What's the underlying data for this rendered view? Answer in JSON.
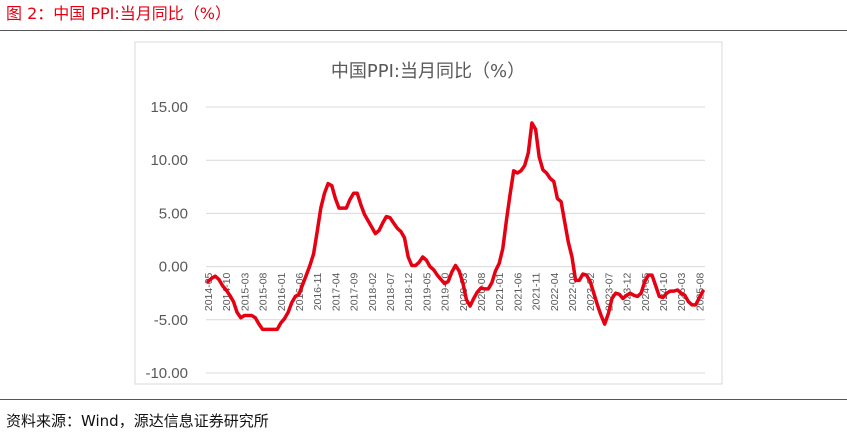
{
  "figure": {
    "title": "图 2：中国 PPI:当月同比（%）",
    "source": "资料来源：Wind，源达信息证券研究所",
    "accent_color": "#e60012"
  },
  "chart_data": {
    "type": "line",
    "title": "中国PPI:当月同比（%）",
    "xlabel": "",
    "ylabel": "",
    "ylim": [
      -10,
      15
    ],
    "yticks": [
      "15.00",
      "10.00",
      "5.00",
      "0.00",
      "-5.00",
      "-10.00"
    ],
    "ytick_values": [
      15,
      10,
      5,
      0,
      -5,
      -10
    ],
    "xtick_labels": [
      "2014-05",
      "2014-10",
      "2015-03",
      "2015-08",
      "2016-01",
      "2016-06",
      "2016-11",
      "2017-04",
      "2017-09",
      "2018-02",
      "2018-07",
      "2018-12",
      "2019-05",
      "2019-10",
      "2020-03",
      "2020-08",
      "2021-01",
      "2021-06",
      "2021-11",
      "2022-04",
      "2022-09",
      "2023-02",
      "2023-07",
      "2023-12",
      "2024-05",
      "2024-10",
      "2025-03",
      "2025-08"
    ],
    "grid": true,
    "line_color": "#e60012",
    "series": [
      {
        "values": [
          [
            "2014-05",
            -1.4
          ],
          [
            "2014-06",
            -1.1
          ],
          [
            "2014-07",
            -0.9
          ],
          [
            "2014-08",
            -1.2
          ],
          [
            "2014-09",
            -1.8
          ],
          [
            "2014-10",
            -2.2
          ],
          [
            "2014-11",
            -2.7
          ],
          [
            "2014-12",
            -3.3
          ],
          [
            "2015-01",
            -4.3
          ],
          [
            "2015-02",
            -4.8
          ],
          [
            "2015-03",
            -4.6
          ],
          [
            "2015-04",
            -4.6
          ],
          [
            "2015-05",
            -4.6
          ],
          [
            "2015-06",
            -4.8
          ],
          [
            "2015-07",
            -5.4
          ],
          [
            "2015-08",
            -5.9
          ],
          [
            "2015-09",
            -5.9
          ],
          [
            "2015-10",
            -5.9
          ],
          [
            "2015-11",
            -5.9
          ],
          [
            "2015-12",
            -5.9
          ],
          [
            "2016-01",
            -5.3
          ],
          [
            "2016-02",
            -4.9
          ],
          [
            "2016-03",
            -4.3
          ],
          [
            "2016-04",
            -3.4
          ],
          [
            "2016-05",
            -2.8
          ],
          [
            "2016-06",
            -2.6
          ],
          [
            "2016-07",
            -1.7
          ],
          [
            "2016-08",
            -0.8
          ],
          [
            "2016-09",
            0.1
          ],
          [
            "2016-10",
            1.2
          ],
          [
            "2016-11",
            3.3
          ],
          [
            "2016-12",
            5.5
          ],
          [
            "2017-01",
            6.9
          ],
          [
            "2017-02",
            7.8
          ],
          [
            "2017-03",
            7.6
          ],
          [
            "2017-04",
            6.4
          ],
          [
            "2017-05",
            5.5
          ],
          [
            "2017-06",
            5.5
          ],
          [
            "2017-07",
            5.5
          ],
          [
            "2017-08",
            6.3
          ],
          [
            "2017-09",
            6.9
          ],
          [
            "2017-10",
            6.9
          ],
          [
            "2017-11",
            5.8
          ],
          [
            "2017-12",
            4.9
          ],
          [
            "2018-01",
            4.3
          ],
          [
            "2018-02",
            3.7
          ],
          [
            "2018-03",
            3.1
          ],
          [
            "2018-04",
            3.4
          ],
          [
            "2018-05",
            4.1
          ],
          [
            "2018-06",
            4.7
          ],
          [
            "2018-07",
            4.6
          ],
          [
            "2018-08",
            4.1
          ],
          [
            "2018-09",
            3.6
          ],
          [
            "2018-10",
            3.3
          ],
          [
            "2018-11",
            2.7
          ],
          [
            "2018-12",
            0.9
          ],
          [
            "2019-01",
            0.1
          ],
          [
            "2019-02",
            0.1
          ],
          [
            "2019-03",
            0.4
          ],
          [
            "2019-04",
            0.9
          ],
          [
            "2019-05",
            0.6
          ],
          [
            "2019-06",
            0.0
          ],
          [
            "2019-07",
            -0.3
          ],
          [
            "2019-08",
            -0.8
          ],
          [
            "2019-09",
            -1.2
          ],
          [
            "2019-10",
            -1.6
          ],
          [
            "2019-11",
            -1.4
          ],
          [
            "2019-12",
            -0.5
          ],
          [
            "2020-01",
            0.1
          ],
          [
            "2020-02",
            -0.4
          ],
          [
            "2020-03",
            -1.5
          ],
          [
            "2020-04",
            -3.1
          ],
          [
            "2020-05",
            -3.7
          ],
          [
            "2020-06",
            -3.0
          ],
          [
            "2020-07",
            -2.4
          ],
          [
            "2020-08",
            -2.0
          ],
          [
            "2020-09",
            -2.1
          ],
          [
            "2020-10",
            -2.1
          ],
          [
            "2020-11",
            -1.5
          ],
          [
            "2020-12",
            -0.4
          ],
          [
            "2021-01",
            0.3
          ],
          [
            "2021-02",
            1.7
          ],
          [
            "2021-03",
            4.4
          ],
          [
            "2021-04",
            6.8
          ],
          [
            "2021-05",
            9.0
          ],
          [
            "2021-06",
            8.8
          ],
          [
            "2021-07",
            9.0
          ],
          [
            "2021-08",
            9.5
          ],
          [
            "2021-09",
            10.7
          ],
          [
            "2021-10",
            13.5
          ],
          [
            "2021-11",
            12.9
          ],
          [
            "2021-12",
            10.3
          ],
          [
            "2022-01",
            9.1
          ],
          [
            "2022-02",
            8.8
          ],
          [
            "2022-03",
            8.3
          ],
          [
            "2022-04",
            8.0
          ],
          [
            "2022-05",
            6.4
          ],
          [
            "2022-06",
            6.1
          ],
          [
            "2022-07",
            4.2
          ],
          [
            "2022-08",
            2.3
          ],
          [
            "2022-09",
            0.9
          ],
          [
            "2022-10",
            -1.3
          ],
          [
            "2022-11",
            -1.3
          ],
          [
            "2022-12",
            -0.7
          ],
          [
            "2023-01",
            -0.8
          ],
          [
            "2023-02",
            -1.4
          ],
          [
            "2023-03",
            -2.5
          ],
          [
            "2023-04",
            -3.6
          ],
          [
            "2023-05",
            -4.6
          ],
          [
            "2023-06",
            -5.4
          ],
          [
            "2023-07",
            -4.4
          ],
          [
            "2023-08",
            -3.0
          ],
          [
            "2023-09",
            -2.5
          ],
          [
            "2023-10",
            -2.6
          ],
          [
            "2023-11",
            -3.0
          ],
          [
            "2023-12",
            -2.7
          ],
          [
            "2024-01",
            -2.5
          ],
          [
            "2024-02",
            -2.7
          ],
          [
            "2024-03",
            -2.8
          ],
          [
            "2024-04",
            -2.5
          ],
          [
            "2024-05",
            -1.4
          ],
          [
            "2024-06",
            -0.8
          ],
          [
            "2024-07",
            -0.8
          ],
          [
            "2024-08",
            -1.8
          ],
          [
            "2024-09",
            -2.8
          ],
          [
            "2024-10",
            -2.9
          ],
          [
            "2024-11",
            -2.5
          ],
          [
            "2024-12",
            -2.3
          ],
          [
            "2025-01",
            -2.3
          ],
          [
            "2025-02",
            -2.2
          ],
          [
            "2025-03",
            -2.5
          ],
          [
            "2025-04",
            -2.7
          ],
          [
            "2025-05",
            -3.3
          ],
          [
            "2025-06",
            -3.6
          ],
          [
            "2025-07",
            -3.6
          ],
          [
            "2025-08",
            -2.9
          ],
          [
            "2025-09",
            -2.3
          ]
        ]
      }
    ]
  }
}
